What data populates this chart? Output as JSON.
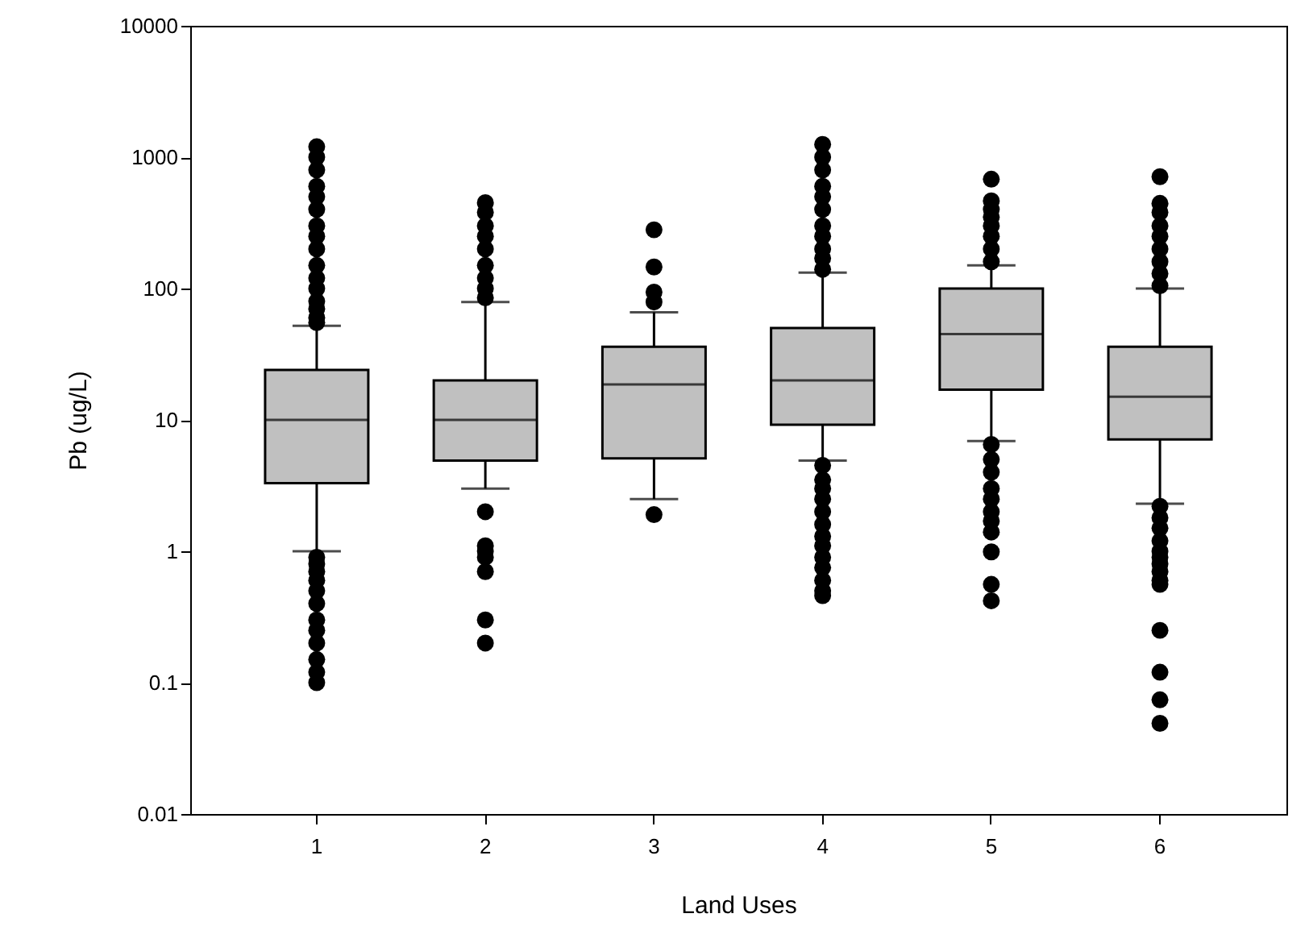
{
  "chart_data": {
    "type": "box",
    "xlabel": "Land Uses",
    "ylabel": "Pb (ug/L)",
    "categories": [
      "1",
      "2",
      "3",
      "4",
      "5",
      "6"
    ],
    "log": true,
    "ylim": [
      0.01,
      10000
    ],
    "yticks": [
      0.01,
      0.1,
      1,
      10,
      100,
      1000,
      10000
    ],
    "marker": "circle",
    "series": [
      {
        "color": "#c0c0c0",
        "boxes": [
          {
            "low": 1.0,
            "q1": 3.3,
            "median": 10,
            "q3": 24,
            "high": 52,
            "outliers": [
              1200,
              1000,
              800,
              600,
              500,
              400,
              300,
              250,
              200,
              150,
              120,
              100,
              80,
              70,
              60,
              55,
              0.9,
              0.8,
              0.7,
              0.6,
              0.5,
              0.4,
              0.3,
              0.25,
              0.2,
              0.15,
              0.12,
              0.1
            ]
          },
          {
            "low": 3.0,
            "q1": 4.9,
            "median": 10,
            "q3": 20,
            "high": 79,
            "outliers": [
              450,
              380,
              300,
              250,
              200,
              150,
              120,
              100,
              85,
              2.0,
              1.1,
              1.0,
              0.9,
              0.7,
              0.3,
              0.2
            ]
          },
          {
            "low": 2.5,
            "q1": 5.1,
            "median": 18.6,
            "q3": 36,
            "high": 66,
            "outliers": [
              280,
              146,
              94,
              79,
              1.9
            ]
          },
          {
            "low": 4.9,
            "q1": 9.2,
            "median": 20,
            "q3": 50,
            "high": 132,
            "outliers": [
              1250,
              1000,
              800,
              600,
              500,
              400,
              300,
              250,
              200,
              170,
              140,
              4.5,
              3.5,
              3,
              2.5,
              2,
              1.6,
              1.3,
              1.1,
              0.9,
              0.75,
              0.6,
              0.5,
              0.46
            ]
          },
          {
            "low": 6.9,
            "q1": 17,
            "median": 45,
            "q3": 100,
            "high": 150,
            "outliers": [
              680,
              465,
              400,
              350,
              300,
              250,
              200,
              160,
              6.5,
              5,
              4,
              3,
              2.5,
              2,
              1.7,
              1.4,
              0.99,
              0.56,
              0.42
            ]
          },
          {
            "low": 2.3,
            "q1": 7.1,
            "median": 15,
            "q3": 36,
            "high": 100,
            "outliers": [
              710,
              445,
              380,
              300,
              250,
              200,
              160,
              130,
              105,
              2.2,
              1.8,
              1.5,
              1.2,
              1,
              0.9,
              0.8,
              0.7,
              0.6,
              0.56,
              0.25,
              0.12,
              0.074,
              0.049
            ]
          }
        ]
      }
    ]
  }
}
